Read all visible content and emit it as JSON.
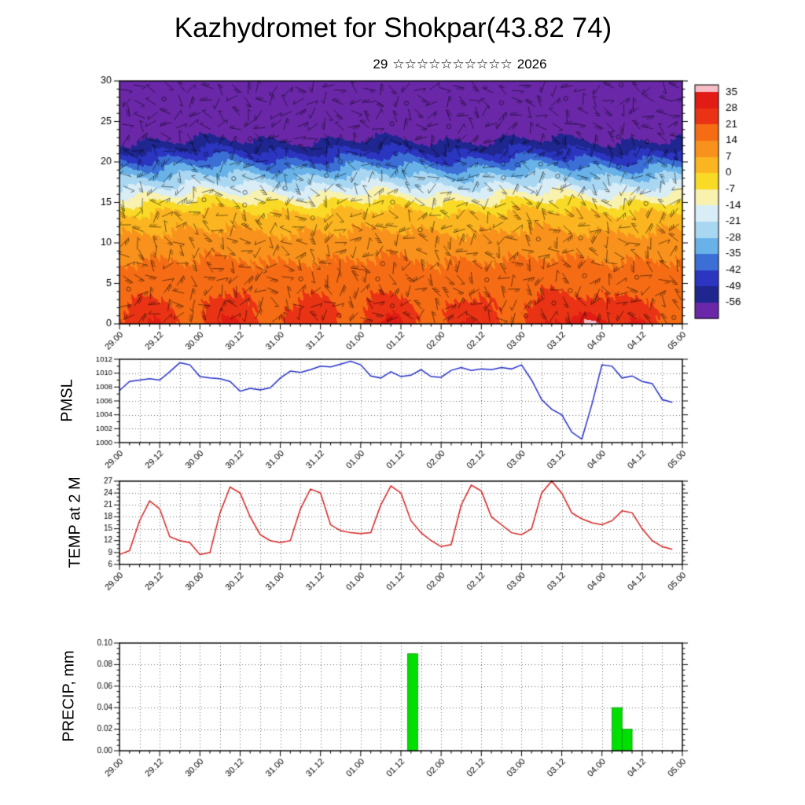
{
  "page": {
    "title": "Kazhydromet for Shokpar(43.82 74)",
    "subtitle": {
      "day": "29",
      "stars": "☆☆☆☆☆☆☆☆☆☆",
      "year": "2026"
    }
  },
  "time_axis": {
    "start_hour": 0,
    "end_hour": 168,
    "major_step_hours": 12,
    "minor_step_hours": 3,
    "grid_step_hours": 6,
    "labels": [
      "29.00",
      "29.12",
      "30.00",
      "30.12",
      "31.00",
      "31.12",
      "01.00",
      "01.12",
      "02.00",
      "02.12",
      "03.00",
      "03.12",
      "04.00",
      "04.12",
      "05.00"
    ]
  },
  "chart_data": [
    {
      "id": "upper_air_cross_section",
      "type": "heatmap",
      "description": "Time-height cross-section of temperature (deg C) with wind barbs overlay",
      "ylim": [
        0,
        30
      ],
      "yticks": [
        0,
        5,
        10,
        15,
        20,
        25,
        30
      ],
      "colorbar": {
        "ticks": [
          35,
          28,
          21,
          14,
          7,
          0,
          -7,
          -14,
          -21,
          -28,
          -35,
          -42,
          -49,
          -56
        ],
        "colors": [
          "#f6bdc6",
          "#e11c14",
          "#ea3315",
          "#f56c15",
          "#f9921c",
          "#fbb520",
          "#f9da26",
          "#f8f2ae",
          "#d9edf7",
          "#a9d7f2",
          "#68b2e8",
          "#3b6fd6",
          "#2b35c0",
          "#1f2690",
          "#6a28a8"
        ]
      },
      "temp_profile_by_height_km": [
        [
          0,
          24
        ],
        [
          2,
          22
        ],
        [
          5,
          18
        ],
        [
          8,
          14
        ],
        [
          10,
          10
        ],
        [
          12,
          6
        ],
        [
          14,
          0
        ],
        [
          15,
          -6
        ],
        [
          16,
          -13
        ],
        [
          17,
          -20
        ],
        [
          18,
          -26
        ],
        [
          19,
          -32
        ],
        [
          20,
          -39
        ],
        [
          21,
          -46
        ],
        [
          22,
          -52
        ],
        [
          23,
          -57.5
        ],
        [
          25,
          -59.5
        ],
        [
          30,
          -61
        ]
      ],
      "diurnal_amplitude_surface": 6,
      "warm_anomaly": {
        "center_hour": 141,
        "width_hours": 5,
        "amplitude": 20
      }
    },
    {
      "id": "pmsl",
      "type": "line",
      "label": "PMSL",
      "color": "#2630c8",
      "ylim": [
        1000,
        1012
      ],
      "yticks": [
        1000,
        1002,
        1004,
        1006,
        1008,
        1010,
        1012
      ],
      "x_start_hour": 0,
      "x_step_hours": 3,
      "values": [
        1007.5,
        1008.8,
        1009.0,
        1009.2,
        1009.0,
        1010.2,
        1011.5,
        1011.2,
        1009.5,
        1009.3,
        1009.2,
        1008.8,
        1007.4,
        1007.8,
        1007.6,
        1007.9,
        1009.3,
        1010.3,
        1010.1,
        1010.5,
        1011.0,
        1010.9,
        1011.3,
        1011.7,
        1011.2,
        1009.6,
        1009.3,
        1010.2,
        1009.5,
        1009.7,
        1010.5,
        1009.5,
        1009.4,
        1010.4,
        1010.8,
        1010.4,
        1010.6,
        1010.5,
        1010.8,
        1010.6,
        1011.2,
        1009.0,
        1006.2,
        1004.8,
        1004.0,
        1001.5,
        1000.5,
        1005.5,
        1011.2,
        1011.0,
        1009.3,
        1009.6,
        1008.8,
        1008.5,
        1006.2,
        1005.8
      ]
    },
    {
      "id": "temp_2m",
      "type": "line",
      "label": "TEMP at 2 M",
      "color": "#d62020",
      "ylim": [
        6,
        27
      ],
      "yticks": [
        6,
        9,
        12,
        15,
        18,
        21,
        24,
        27
      ],
      "x_start_hour": 0,
      "x_step_hours": 3,
      "values": [
        8.5,
        9.5,
        17,
        22,
        20,
        13,
        12,
        11.5,
        8.5,
        9,
        19,
        25.5,
        24,
        18,
        13.5,
        12,
        11.5,
        12,
        20,
        25,
        24,
        16,
        14.5,
        14,
        13.8,
        14,
        21,
        25.8,
        24,
        17,
        14,
        12,
        10.5,
        11,
        21,
        26,
        24.5,
        18,
        16,
        14,
        13.5,
        15,
        24,
        27,
        24,
        19,
        17.5,
        16.5,
        16,
        17,
        19.5,
        19,
        15,
        12,
        10.5,
        9.8
      ]
    },
    {
      "id": "precip",
      "type": "bar",
      "label": "PRECIP, mm",
      "color": "#00e000",
      "ylim": [
        0,
        0.1
      ],
      "yticks": [
        0,
        0.02,
        0.04,
        0.06,
        0.08,
        0.1
      ],
      "ytick_labels": [
        "0.00",
        "0.02",
        "0.04",
        "0.06",
        "0.08",
        "0.10"
      ],
      "bars": [
        {
          "start_hour": 86,
          "end_hour": 89,
          "value": 0.09
        },
        {
          "start_hour": 147,
          "end_hour": 150,
          "value": 0.04
        },
        {
          "start_hour": 150,
          "end_hour": 153,
          "value": 0.02
        }
      ]
    }
  ]
}
